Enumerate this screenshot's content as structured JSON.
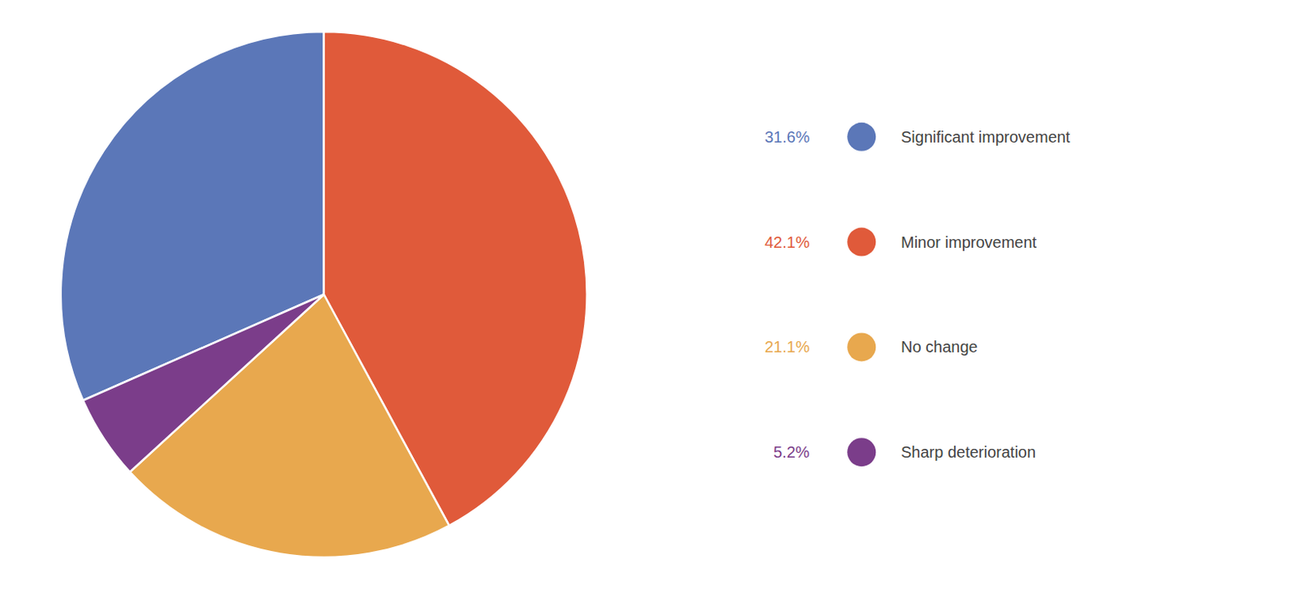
{
  "chart_data": {
    "type": "pie",
    "categories": [
      "Significant improvement",
      "Minor improvement",
      "No change",
      "Sharp deterioration"
    ],
    "values": [
      31.6,
      42.1,
      21.1,
      5.2
    ],
    "value_labels": [
      "31.6%",
      "42.1%",
      "21.1%",
      "5.2%"
    ],
    "colors": [
      "#5b77b8",
      "#e05a3a",
      "#e8a84e",
      "#7b3d8a"
    ]
  }
}
